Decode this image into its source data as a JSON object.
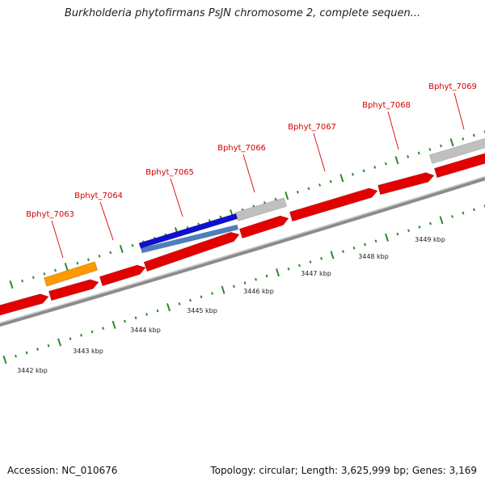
{
  "title": "Burkholderia phytofirmans PsJN chromosome 2, complete sequen...",
  "footer": {
    "accession": "Accession: NC_010676",
    "stats": "Topology: circular; Length: 3,625,999 bp; Genes: 3,169"
  },
  "colors": {
    "cds": "#e30000",
    "selected_gene": "#1010d0",
    "selected_gene_lower": "#4a7fc0",
    "orange_feature": "#ff9900",
    "gray_feature": "#c0c0c0",
    "backbone": "#8c8c8c",
    "ticks": "#2a8a2a",
    "label": "#d40000"
  },
  "gene_labels": [
    "Bphyt_7063",
    "Bphyt_7064",
    "Bphyt_7065",
    "Bphyt_7066",
    "Bphyt_7067",
    "Bphyt_7068",
    "Bphyt_7069"
  ],
  "kbp_labels": [
    "3442 kbp",
    "3443 kbp",
    "3444 kbp",
    "3445 kbp",
    "3446 kbp",
    "3447 kbp",
    "3448 kbp",
    "3449 kbp"
  ]
}
